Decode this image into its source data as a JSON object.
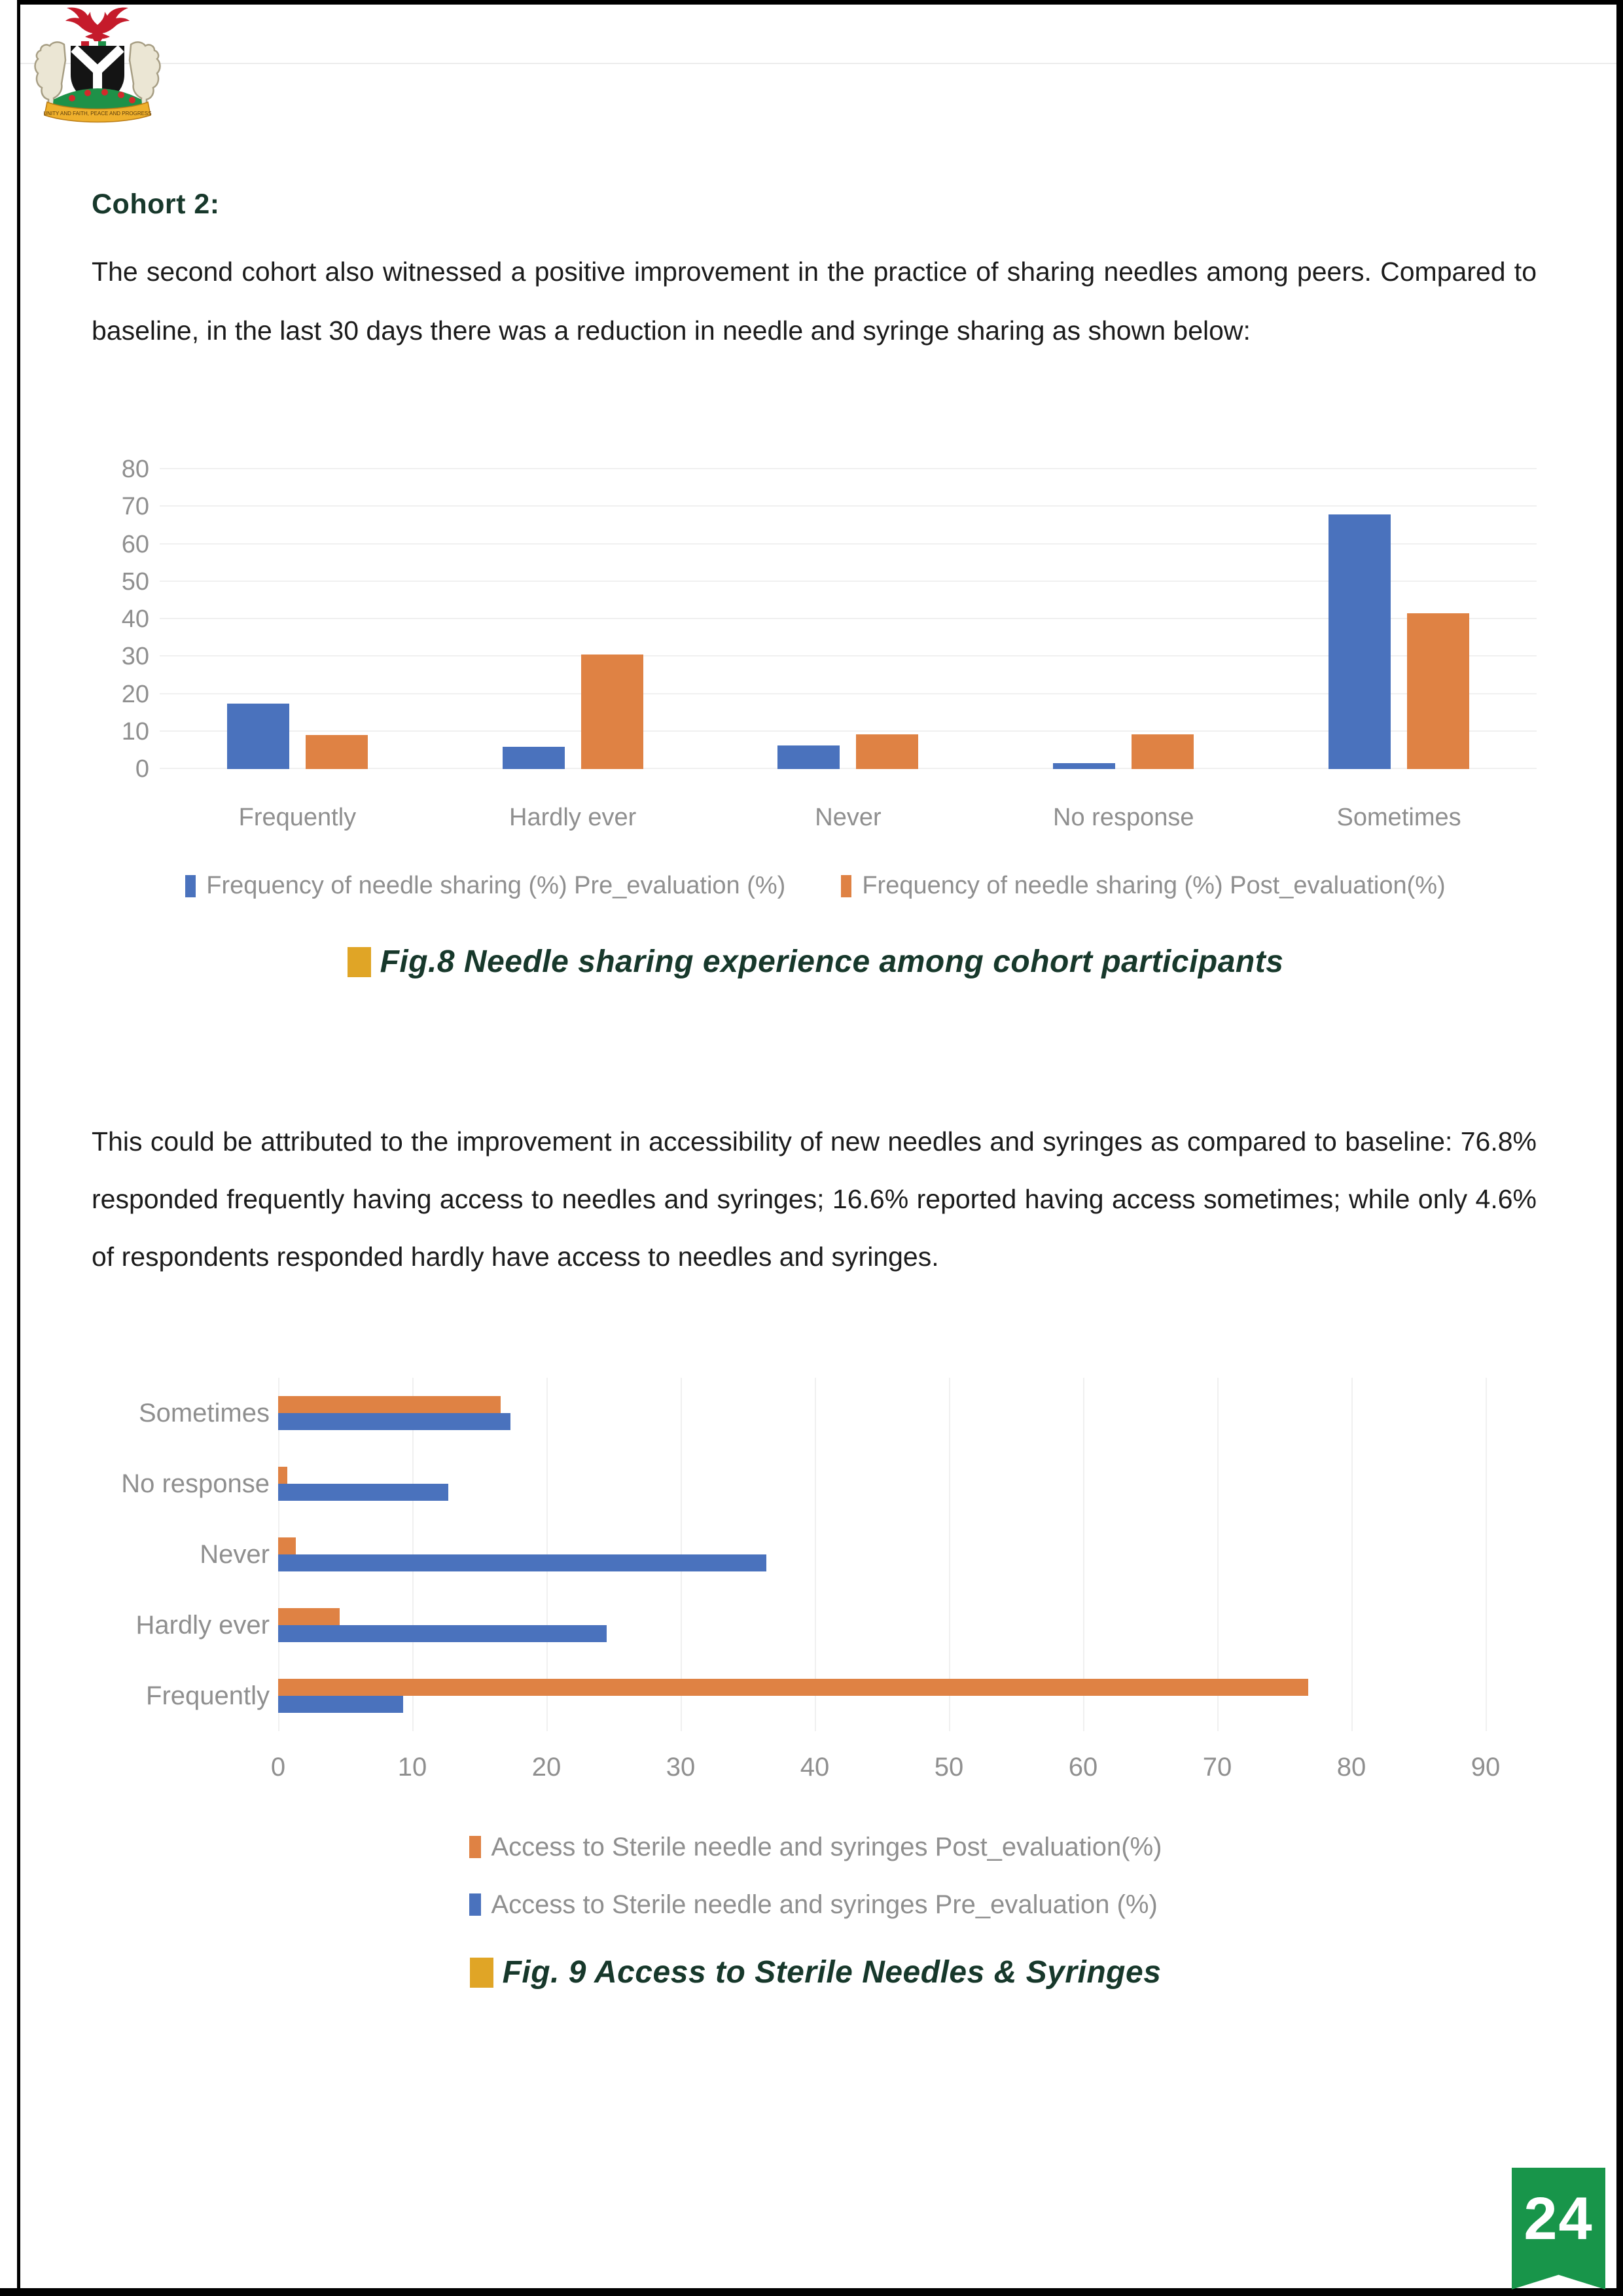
{
  "page": {
    "number": "24",
    "accent_green": "#18954a",
    "heading_green": "#17382b"
  },
  "logo": {
    "name": "nigeria-coat-of-arms",
    "motto": "UNITY AND FAITH, PEACE AND PROGRESS"
  },
  "heading": "Cohort 2:",
  "paragraphs": {
    "p1": "The second cohort also witnessed a positive improvement in the practice of sharing needles among peers. Compared to baseline, in the last 30 days there was a reduction in needle and syringe sharing as shown below:",
    "p2": "This could be attributed to the improvement in accessibility of new needles and syringes as compared to baseline:  76.8% responded frequently having access to needles and syringes; 16.6% reported having access sometimes; while only 4.6% of respondents responded hardly have access to needles and syringes."
  },
  "chart_data": [
    {
      "figure": "Fig.8",
      "type": "bar",
      "orientation": "vertical",
      "title": "",
      "categories": [
        "Frequently",
        "Hardly ever",
        "Never",
        "No response",
        "Sometimes"
      ],
      "series": [
        {
          "name": "Frequency of needle sharing (%) Pre_evaluation (%)",
          "color": "#4a72bd",
          "values": [
            17.5,
            6,
            6.3,
            1.5,
            68
          ]
        },
        {
          "name": "Frequency of needle sharing (%) Post_evaluation(%)",
          "color": "#df8244",
          "values": [
            9,
            30.5,
            9.3,
            9.3,
            41.5
          ]
        }
      ],
      "xlabel": "",
      "ylabel": "",
      "ylim": [
        0,
        80
      ],
      "yticks": [
        0,
        10,
        20,
        30,
        40,
        50,
        60,
        70,
        80
      ],
      "grid": true,
      "legend_position": "bottom",
      "caption": {
        "text": "Fig.8 Needle sharing experience among cohort participants",
        "bullet_color": "#e0a526"
      }
    },
    {
      "figure": "Fig. 9",
      "type": "bar",
      "orientation": "horizontal",
      "title": "",
      "categories": [
        "Sometimes",
        "No response",
        "Never",
        "Hardly ever",
        "Frequently"
      ],
      "series": [
        {
          "name": "Access to Sterile needle and syringes  Post_evaluation(%)",
          "color": "#df8244",
          "values": [
            16.6,
            0.7,
            1.3,
            4.6,
            76.8
          ]
        },
        {
          "name": "Access to Sterile needle and syringes  Pre_evaluation (%)",
          "color": "#4a72bd",
          "values": [
            17.3,
            12.7,
            36.4,
            24.5,
            9.3
          ]
        }
      ],
      "xlabel": "",
      "ylabel": "",
      "xlim": [
        0,
        90
      ],
      "xticks": [
        0,
        10,
        20,
        30,
        40,
        50,
        60,
        70,
        80,
        90
      ],
      "grid": true,
      "legend_position": "bottom",
      "caption": {
        "text": "Fig. 9 Access to Sterile Needles & Syringes",
        "bullet_color": "#e0a526"
      }
    }
  ]
}
